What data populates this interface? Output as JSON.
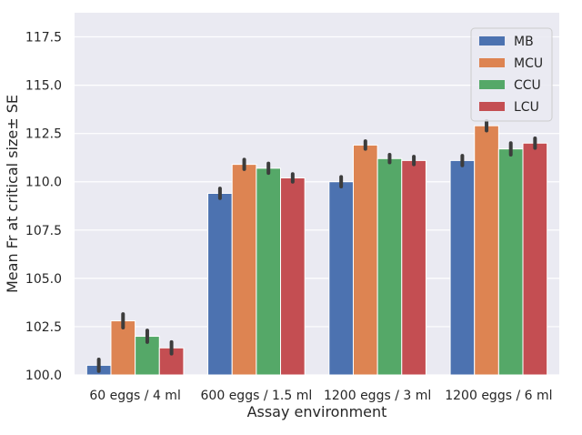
{
  "chart_data": {
    "type": "bar",
    "xlabel": "Assay environment",
    "ylabel": "Mean Fr at critical size± SE",
    "ylim": [
      100.0,
      118.75
    ],
    "yticks": [
      "100.0",
      "102.5",
      "105.0",
      "107.5",
      "110.0",
      "112.5",
      "115.0",
      "117.5"
    ],
    "grid": true,
    "legend_position": "top-right",
    "categories": [
      "60 eggs / 4 ml",
      "600 eggs / 1.5 ml",
      "1200 eggs / 3 ml",
      "1200 eggs / 6 ml"
    ],
    "series": [
      {
        "name": "MB",
        "color": "#4c72b0",
        "values": [
          100.5,
          109.4,
          110.0,
          111.1
        ],
        "err": [
          0.3,
          0.25,
          0.25,
          0.25
        ]
      },
      {
        "name": "MCU",
        "color": "#dd8452",
        "values": [
          102.8,
          110.9,
          111.9,
          112.9
        ],
        "err": [
          0.35,
          0.25,
          0.2,
          0.25
        ]
      },
      {
        "name": "CCU",
        "color": "#55a868",
        "values": [
          102.0,
          110.7,
          111.2,
          111.7
        ],
        "err": [
          0.3,
          0.25,
          0.2,
          0.3
        ]
      },
      {
        "name": "LCU",
        "color": "#c44e52",
        "values": [
          101.4,
          110.2,
          111.1,
          112.0
        ],
        "err": [
          0.3,
          0.2,
          0.2,
          0.25
        ]
      }
    ]
  }
}
